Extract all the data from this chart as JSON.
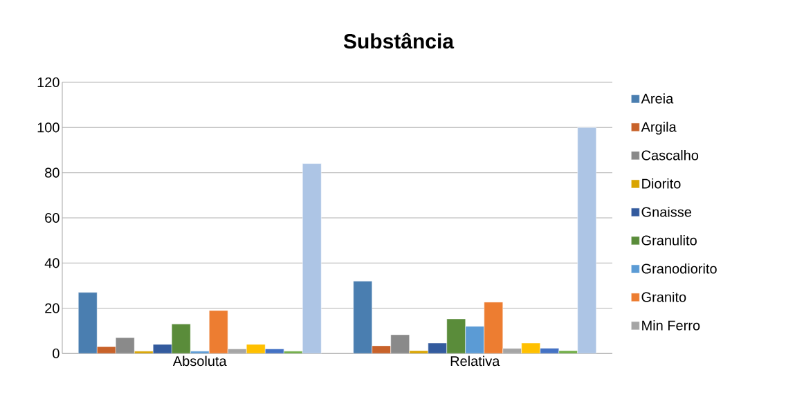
{
  "chart_data": {
    "type": "bar",
    "title": "Substância",
    "categories": [
      "Absoluta",
      "Relativa"
    ],
    "series": [
      {
        "name": "Areia",
        "color": "#4a7eb0",
        "values": [
          27,
          32
        ]
      },
      {
        "name": "Argila",
        "color": "#c8622a",
        "values": [
          3,
          3.4
        ]
      },
      {
        "name": "Cascalho",
        "color": "#8a8a8a",
        "values": [
          7,
          8.3
        ]
      },
      {
        "name": "Diorito",
        "color": "#d9a400",
        "values": [
          1,
          1.2
        ]
      },
      {
        "name": "Gnaisse",
        "color": "#335b9e",
        "values": [
          4,
          4.6
        ]
      },
      {
        "name": "Granulito",
        "color": "#5a8c3a",
        "values": [
          13,
          15.3
        ]
      },
      {
        "name": "Granodiorito",
        "color": "#5b9bd5",
        "values": [
          1,
          12
        ]
      },
      {
        "name": "Granito",
        "color": "#ed7d31",
        "values": [
          19,
          22.7
        ]
      },
      {
        "name": "Min Ferro",
        "color": "#a5a5a5",
        "values": [
          2,
          2.2
        ]
      },
      {
        "color": "#ffc000",
        "values": [
          4,
          4.6
        ]
      },
      {
        "color": "#4472c4",
        "values": [
          2,
          2.3
        ]
      },
      {
        "color": "#70ad47",
        "values": [
          1,
          1.2
        ]
      },
      {
        "color": "#adc5e5",
        "values": [
          84,
          100
        ]
      }
    ],
    "ylim": [
      0,
      120
    ],
    "yticks": [
      0,
      20,
      40,
      60,
      80,
      100,
      120
    ],
    "grid": "y",
    "legend": "right"
  }
}
